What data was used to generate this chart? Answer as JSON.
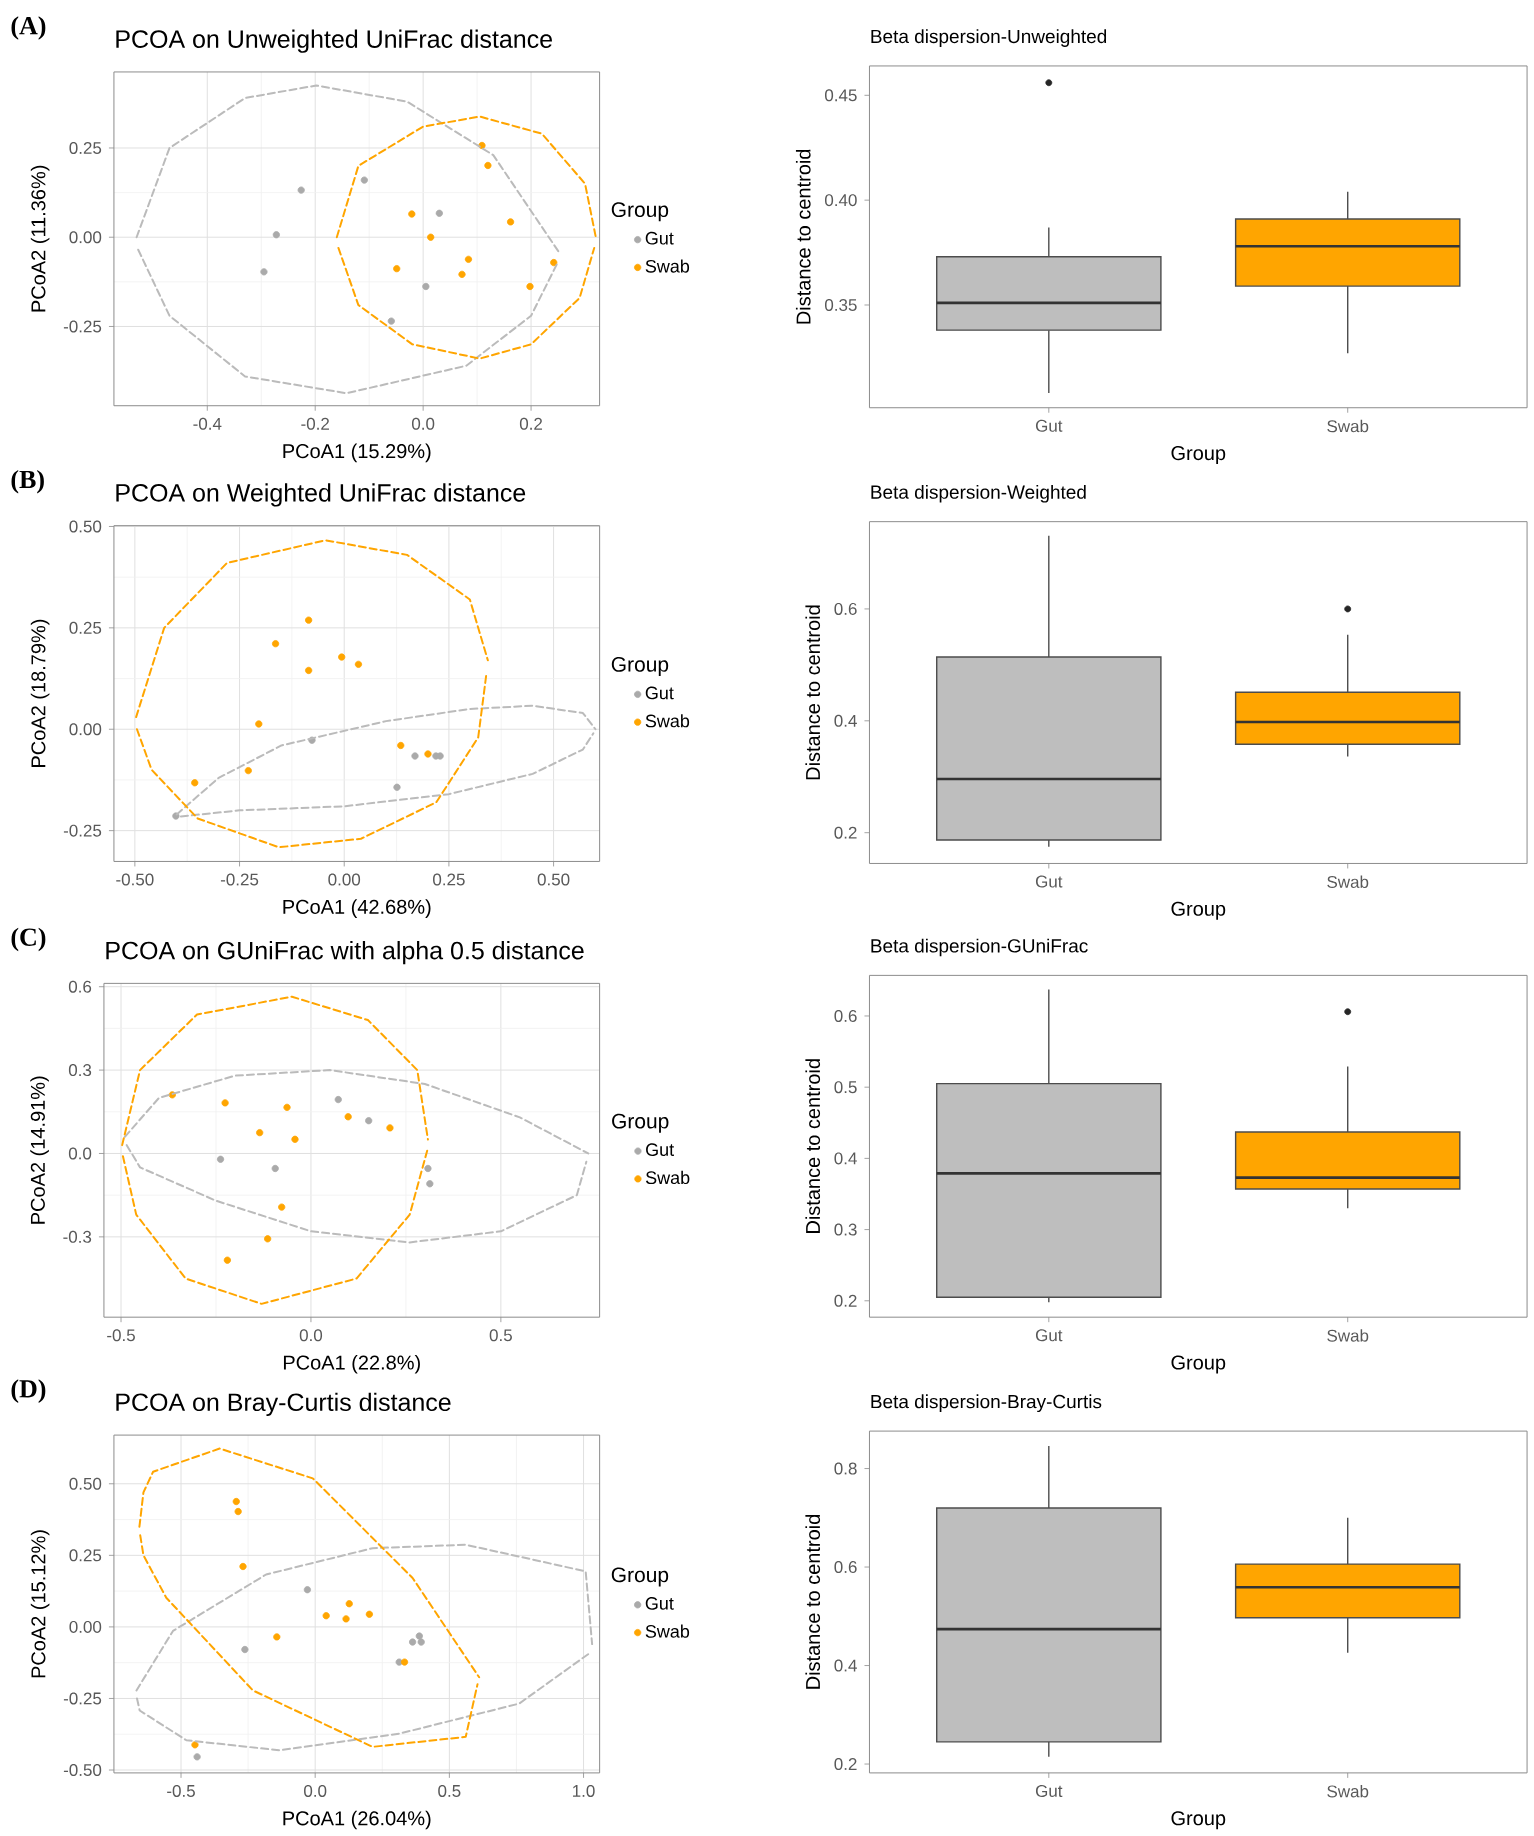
{
  "chart_data": [
    {
      "type": "scatter",
      "title": "PCOA on Unweighted UniFrac distance",
      "xlabel": "PCoA1 (15.29%)",
      "ylabel": "PCoA2 (11.36%)",
      "legend_title": "Group",
      "legend": "right",
      "grid": true,
      "annotations": [
        "(A)"
      ],
      "xlim": [
        -0.573,
        0.327
      ],
      "ylim": [
        -0.472,
        0.463
      ],
      "xticks": [
        -0.4,
        -0.2,
        {
          "value": 0,
          "label": "0.0"
        },
        0.2
      ],
      "yticks": [
        -0.25,
        {
          "value": 0,
          "label": "0.00"
        },
        0.25
      ],
      "series": [
        {
          "name": "Gut",
          "color": "#aaaaaa",
          "marker": "circle",
          "x": [
            -0.226,
            -0.272,
            -0.295,
            -0.109,
            0.03,
            0.005,
            -0.059
          ],
          "values": [
            0.132,
            0.007,
            -0.097,
            0.16,
            0.067,
            -0.138,
            -0.235
          ]
        },
        {
          "name": "Swab",
          "color": "#ffa500",
          "marker": "circle",
          "x": [
            0.109,
            0.12,
            -0.021,
            0.014,
            0.162,
            -0.049,
            0.084,
            0.072,
            0.242,
            0.198
          ],
          "values": [
            0.257,
            0.201,
            0.065,
            0.0,
            0.043,
            -0.088,
            -0.062,
            -0.104,
            -0.071,
            -0.138
          ]
        },
        {
          "type": "line",
          "line_style": "dashed",
          "marker": "none",
          "color": "#bbbbbb",
          "x": [
            -0.531,
            -0.47,
            -0.33,
            -0.198,
            -0.03,
            0.13,
            0.253
          ],
          "values": [
            0.0,
            0.25,
            0.39,
            0.425,
            0.38,
            0.23,
            -0.045
          ]
        },
        {
          "type": "line",
          "line_style": "dashed",
          "marker": "none",
          "color": "#bbbbbb",
          "x": [
            -0.528,
            -0.47,
            -0.33,
            -0.142,
            0.08,
            0.2,
            0.248
          ],
          "values": [
            -0.035,
            -0.22,
            -0.39,
            -0.437,
            -0.36,
            -0.22,
            -0.075
          ]
        },
        {
          "type": "line",
          "line_style": "dashed",
          "marker": "none",
          "color": "#ffa500",
          "x": [
            -0.16,
            -0.12,
            0.0,
            0.105,
            0.22,
            0.3,
            0.32
          ],
          "values": [
            0.0,
            0.2,
            0.31,
            0.338,
            0.29,
            0.15,
            0.0
          ]
        },
        {
          "type": "line",
          "line_style": "dashed",
          "marker": "none",
          "color": "#ffa500",
          "x": [
            -0.157,
            -0.12,
            -0.02,
            0.105,
            0.2,
            0.29,
            0.317
          ],
          "values": [
            -0.03,
            -0.19,
            -0.3,
            -0.34,
            -0.3,
            -0.17,
            -0.03
          ]
        }
      ]
    },
    {
      "type": "box",
      "title": "Beta dispersion-Unweighted",
      "xlabel": "Group",
      "ylabel": "Distance to centroid",
      "categories": [
        "Gut",
        "Swab"
      ],
      "colors": [
        "#bebebe",
        "#ffa500"
      ],
      "ylim": [
        0.301,
        0.464
      ],
      "yticks": [
        0.35,
        {
          "value": 0.4,
          "label": "0.40"
        },
        0.45
      ],
      "boxes": [
        {
          "low": 0.308,
          "q1": 0.338,
          "median": 0.351,
          "q3": 0.373,
          "high": 0.387,
          "outliers": [
            0.456
          ]
        },
        {
          "low": 0.327,
          "q1": 0.359,
          "median": 0.378,
          "q3": 0.391,
          "high": 0.404
        }
      ]
    },
    {
      "type": "scatter",
      "title": "PCOA on Weighted UniFrac distance",
      "xlabel": "PCoA1 (42.68%)",
      "ylabel": "PCoA2 (18.79%)",
      "legend_title": "Group",
      "legend": "right",
      "grid": true,
      "annotations": [
        "(B)"
      ],
      "xlim": [
        -0.55,
        0.61
      ],
      "ylim": [
        -0.326,
        0.502
      ],
      "xticks": [
        {
          "value": -0.5,
          "label": "-0.50"
        },
        -0.25,
        {
          "value": 0,
          "label": "0.00"
        },
        0.25,
        {
          "value": 0.5,
          "label": "0.50"
        }
      ],
      "yticks": [
        -0.25,
        {
          "value": 0,
          "label": "0.00"
        },
        0.25,
        {
          "value": 0.5,
          "label": "0.50"
        }
      ],
      "series": [
        {
          "name": "Gut",
          "color": "#aaaaaa",
          "marker": "circle",
          "x": [
            -0.077,
            0.169,
            0.219,
            0.229,
            0.126,
            -0.402
          ],
          "values": [
            -0.027,
            -0.066,
            -0.066,
            -0.066,
            -0.143,
            -0.214
          ]
        },
        {
          "name": "Swab",
          "color": "#ffa500",
          "marker": "circle",
          "x": [
            -0.357,
            -0.164,
            -0.085,
            -0.085,
            -0.006,
            0.034,
            -0.204,
            -0.229,
            0.135,
            0.2
          ],
          "values": [
            -0.132,
            0.211,
            0.269,
            0.145,
            0.178,
            0.16,
            0.013,
            -0.102,
            -0.04,
            -0.061
          ]
        },
        {
          "type": "line",
          "line_style": "dashed",
          "marker": "none",
          "color": "#bbbbbb",
          "x": [
            -0.4,
            -0.3,
            -0.15,
            0.1,
            0.3,
            0.45,
            0.57,
            0.6
          ],
          "values": [
            -0.21,
            -0.12,
            -0.04,
            0.02,
            0.05,
            0.058,
            0.04,
            0.0
          ]
        },
        {
          "type": "line",
          "line_style": "dashed",
          "marker": "none",
          "color": "#bbbbbb",
          "x": [
            -0.39,
            -0.25,
            0.0,
            0.25,
            0.45,
            0.57,
            0.595
          ],
          "values": [
            -0.215,
            -0.2,
            -0.19,
            -0.16,
            -0.11,
            -0.05,
            -0.01
          ]
        },
        {
          "type": "line",
          "line_style": "dashed",
          "marker": "none",
          "color": "#ffa500",
          "x": [
            -0.497,
            -0.43,
            -0.28,
            -0.045,
            0.15,
            0.3,
            0.343
          ],
          "values": [
            0.03,
            0.25,
            0.41,
            0.466,
            0.43,
            0.32,
            0.17
          ]
        },
        {
          "type": "line",
          "line_style": "dashed",
          "marker": "none",
          "color": "#ffa500",
          "x": [
            -0.495,
            -0.46,
            -0.35,
            -0.156,
            0.04,
            0.22,
            0.32,
            0.34
          ],
          "values": [
            0.0,
            -0.1,
            -0.22,
            -0.291,
            -0.27,
            -0.18,
            -0.02,
            0.14
          ]
        }
      ]
    },
    {
      "type": "box",
      "title": "Beta dispersion-Weighted",
      "xlabel": "Group",
      "ylabel": "Distance to centroid",
      "categories": [
        "Gut",
        "Swab"
      ],
      "colors": [
        "#bebebe",
        "#ffa500"
      ],
      "ylim": [
        0.145,
        0.756
      ],
      "yticks": [
        0.2,
        0.4,
        0.6
      ],
      "boxes": [
        {
          "low": 0.175,
          "q1": 0.187,
          "median": 0.296,
          "q3": 0.514,
          "high": 0.731
        },
        {
          "low": 0.336,
          "q1": 0.358,
          "median": 0.398,
          "q3": 0.451,
          "high": 0.554,
          "outliers": [
            0.6
          ]
        }
      ]
    },
    {
      "type": "scatter",
      "title": "PCOA on GUniFrac with alpha 0.5 distance",
      "xlabel": "PCoA1 (22.8%)",
      "ylabel": "PCoA2 (14.91%)",
      "legend_title": "Group",
      "legend": "right",
      "grid": true,
      "annotations": [
        "(C)"
      ],
      "xlim": [
        -0.545,
        0.76
      ],
      "ylim": [
        -0.589,
        0.612
      ],
      "xticks": [
        -0.5,
        {
          "value": 0,
          "label": "0.0"
        },
        0.5
      ],
      "yticks": [
        -0.3,
        {
          "value": 0,
          "label": "0.0"
        },
        0.3,
        0.6
      ],
      "series": [
        {
          "name": "Gut",
          "color": "#aaaaaa",
          "marker": "circle",
          "x": [
            -0.238,
            -0.094,
            0.072,
            0.152,
            0.308,
            0.313
          ],
          "values": [
            -0.021,
            -0.054,
            0.194,
            0.118,
            -0.054,
            -0.109
          ]
        },
        {
          "name": "Swab",
          "color": "#ffa500",
          "marker": "circle",
          "x": [
            -0.365,
            -0.226,
            -0.063,
            -0.135,
            -0.042,
            0.098,
            0.208,
            -0.077,
            -0.114,
            -0.22
          ],
          "values": [
            0.211,
            0.182,
            0.166,
            0.075,
            0.051,
            0.132,
            0.092,
            -0.193,
            -0.307,
            -0.384
          ]
        },
        {
          "type": "line",
          "line_style": "dashed",
          "marker": "none",
          "color": "#bbbbbb",
          "x": [
            -0.49,
            -0.4,
            -0.2,
            0.05,
            0.3,
            0.55,
            0.73
          ],
          "values": [
            0.06,
            0.2,
            0.28,
            0.3,
            0.25,
            0.13,
            0.0
          ]
        },
        {
          "type": "line",
          "line_style": "dashed",
          "marker": "none",
          "color": "#bbbbbb",
          "x": [
            -0.485,
            -0.45,
            -0.25,
            0.0,
            0.26,
            0.5,
            0.7,
            0.725
          ],
          "values": [
            0.03,
            -0.05,
            -0.17,
            -0.28,
            -0.32,
            -0.28,
            -0.15,
            -0.03
          ]
        },
        {
          "type": "line",
          "line_style": "dashed",
          "marker": "none",
          "color": "#ffa500",
          "x": [
            -0.497,
            -0.45,
            -0.3,
            -0.05,
            0.15,
            0.28,
            0.308
          ],
          "values": [
            0.03,
            0.3,
            0.5,
            0.564,
            0.48,
            0.3,
            0.05
          ]
        },
        {
          "type": "line",
          "line_style": "dashed",
          "marker": "none",
          "color": "#ffa500",
          "x": [
            -0.495,
            -0.46,
            -0.33,
            -0.13,
            0.12,
            0.26,
            0.306
          ],
          "values": [
            -0.01,
            -0.22,
            -0.45,
            -0.541,
            -0.45,
            -0.22,
            0.01
          ]
        }
      ]
    },
    {
      "type": "box",
      "title": "Beta dispersion-GUniFrac",
      "xlabel": "Group",
      "ylabel": "Distance to centroid",
      "categories": [
        "Gut",
        "Swab"
      ],
      "colors": [
        "#bebebe",
        "#ffa500"
      ],
      "ylim": [
        0.177,
        0.657
      ],
      "yticks": [
        0.2,
        0.3,
        0.4,
        0.5,
        0.6
      ],
      "boxes": [
        {
          "low": 0.198,
          "q1": 0.205,
          "median": 0.379,
          "q3": 0.505,
          "high": 0.637
        },
        {
          "low": 0.33,
          "q1": 0.357,
          "median": 0.373,
          "q3": 0.437,
          "high": 0.529,
          "outliers": [
            0.606
          ]
        }
      ]
    },
    {
      "type": "scatter",
      "title": "PCOA on Bray-Curtis distance",
      "xlabel": "PCoA1 (26.04%)",
      "ylabel": "PCoA2 (15.12%)",
      "legend_title": "Group",
      "legend": "right",
      "grid": true,
      "annotations": [
        "(D)"
      ],
      "xlim": [
        -0.75,
        1.06
      ],
      "ylim": [
        -0.51,
        0.67
      ],
      "xticks": [
        -0.5,
        {
          "value": 0,
          "label": "0.0"
        },
        0.5,
        {
          "value": 1,
          "label": "1.0"
        }
      ],
      "yticks": [
        {
          "value": -0.5,
          "label": "-0.50"
        },
        -0.25,
        {
          "value": 0,
          "label": "0.00"
        },
        0.25,
        {
          "value": 0.5,
          "label": "0.50"
        }
      ],
      "series": [
        {
          "name": "Gut",
          "color": "#aaaaaa",
          "marker": "circle",
          "x": [
            -0.029,
            -0.262,
            0.313,
            0.363,
            0.388,
            0.395,
            -0.44
          ],
          "values": [
            0.13,
            -0.079,
            -0.123,
            -0.053,
            -0.032,
            -0.053,
            -0.454
          ]
        },
        {
          "name": "Swab",
          "color": "#ffa500",
          "marker": "circle",
          "x": [
            -0.294,
            -0.287,
            -0.269,
            -0.143,
            0.041,
            0.127,
            0.115,
            0.202,
            0.333,
            -0.448
          ],
          "values": [
            0.438,
            0.403,
            0.211,
            -0.035,
            0.039,
            0.081,
            0.028,
            0.044,
            -0.123,
            -0.412
          ]
        },
        {
          "type": "line",
          "line_style": "dashed",
          "marker": "none",
          "color": "#bbbbbb",
          "x": [
            -0.666,
            -0.53,
            -0.183,
            0.214,
            0.561,
            1.008,
            1.032
          ],
          "values": [
            -0.222,
            -0.014,
            0.183,
            0.275,
            0.287,
            0.194,
            -0.06
          ]
        },
        {
          "type": "line",
          "line_style": "dashed",
          "marker": "none",
          "color": "#bbbbbb",
          "x": [
            -0.664,
            -0.654,
            -0.48,
            -0.133,
            0.313,
            0.76,
            1.025
          ],
          "values": [
            -0.25,
            -0.292,
            -0.396,
            -0.431,
            -0.373,
            -0.268,
            -0.09
          ]
        },
        {
          "type": "line",
          "line_style": "dashed",
          "marker": "none",
          "color": "#ffa500",
          "x": [
            -0.655,
            -0.64,
            -0.604,
            -0.356,
            -0.009,
            0.363,
            0.611
          ],
          "values": [
            0.35,
            0.47,
            0.542,
            0.623,
            0.519,
            0.171,
            -0.176
          ]
        },
        {
          "type": "line",
          "line_style": "dashed",
          "marker": "none",
          "color": "#ffa500",
          "x": [
            -0.652,
            -0.64,
            -0.555,
            -0.232,
            0.214,
            0.561,
            0.605
          ],
          "values": [
            0.32,
            0.25,
            0.102,
            -0.222,
            -0.419,
            -0.384,
            -0.2
          ]
        }
      ]
    },
    {
      "type": "box",
      "title": "Beta dispersion-Bray-Curtis",
      "xlabel": "Group",
      "ylabel": "Distance to centroid",
      "categories": [
        "Gut",
        "Swab"
      ],
      "colors": [
        "#bebebe",
        "#ffa500"
      ],
      "ylim": [
        0.182,
        0.876
      ],
      "yticks": [
        0.2,
        0.4,
        0.6,
        0.8
      ],
      "boxes": [
        {
          "low": 0.215,
          "q1": 0.245,
          "median": 0.474,
          "q3": 0.72,
          "high": 0.846
        },
        {
          "low": 0.426,
          "q1": 0.497,
          "median": 0.559,
          "q3": 0.606,
          "high": 0.7
        }
      ]
    }
  ]
}
